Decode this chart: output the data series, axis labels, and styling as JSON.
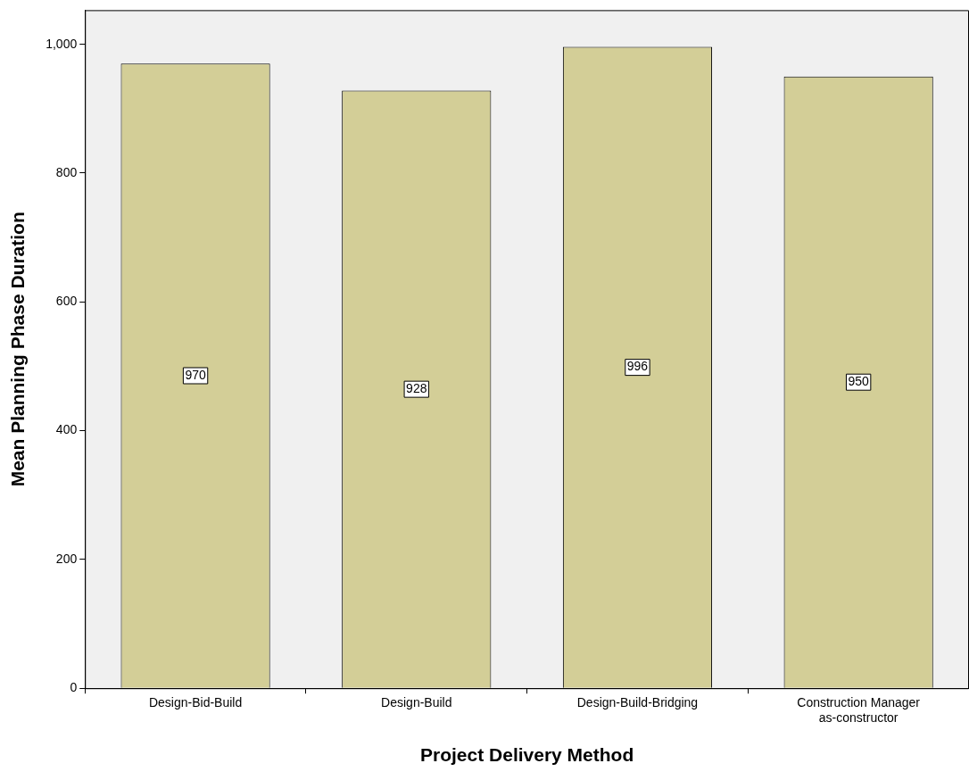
{
  "chart_data": {
    "type": "bar",
    "xlabel": "Project Delivery Method",
    "ylabel": "Mean Planning Phase Duration",
    "categories": [
      "Design-Bid-Build",
      "Design-Build",
      "Design-Build-Bridging",
      "Construction Manager\nas-constructor"
    ],
    "values": [
      970,
      928,
      996,
      950
    ],
    "color": "#d3ce97",
    "ylim": [
      0,
      1053
    ],
    "yticks": [
      0,
      200,
      400,
      600,
      800,
      {
        "value": 1000,
        "label": "1,000"
      }
    ],
    "grid": false,
    "legend": false,
    "data_labels": true
  }
}
